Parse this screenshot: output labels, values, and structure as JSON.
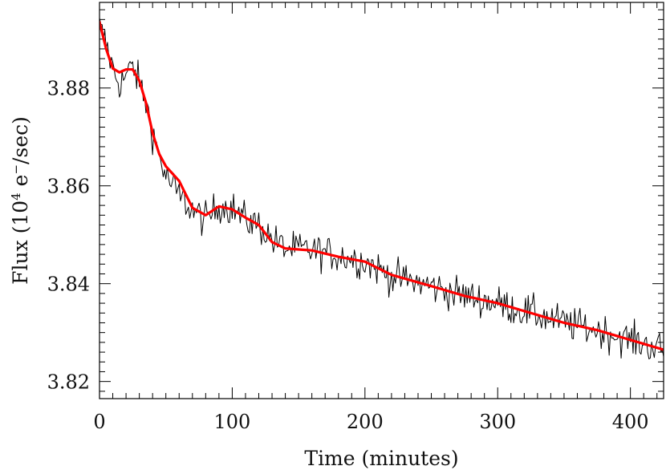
{
  "chart_data": {
    "type": "line",
    "title": "",
    "xlabel": "Time (minutes)",
    "ylabel": {
      "prefix": "Flux (10",
      "exponent": "4",
      "unit": " e",
      "unit_superscript": "−",
      "suffix": "/sec)"
    },
    "xlim": [
      0,
      425
    ],
    "ylim": [
      3.8165,
      3.8975
    ],
    "xticks": [
      0,
      100,
      200,
      300,
      400
    ],
    "xtick_labels": [
      "0",
      "100",
      "200",
      "300",
      "400"
    ],
    "xminor_step": 10,
    "yticks": [
      3.82,
      3.84,
      3.86,
      3.88
    ],
    "ytick_labels": [
      "3.82",
      "3.84",
      "3.86",
      "3.88"
    ],
    "yminor_step": 0.002,
    "grid": false,
    "legend": "none",
    "colors": {
      "data": "#000000",
      "fit": "#ff0000",
      "axes": "#000000"
    },
    "series": [
      {
        "role": "measured",
        "style": "thin-black-line",
        "sample_step_minutes": 1,
        "noise_amplitude": 0.0035,
        "values_follow": "smoothed trend plus per-sample scatter",
        "x": [
          0,
          5,
          10,
          15,
          20,
          25,
          30,
          35,
          40,
          45,
          50,
          60,
          70,
          80,
          90,
          100,
          110,
          120,
          130,
          140,
          160,
          180,
          200,
          220,
          250,
          275,
          300,
          325,
          350,
          375,
          400,
          425
        ],
        "y": [
          3.8925,
          3.889,
          3.884,
          3.881,
          3.8825,
          3.8845,
          3.881,
          3.877,
          3.871,
          3.866,
          3.862,
          3.858,
          3.855,
          3.853,
          3.856,
          3.8555,
          3.853,
          3.852,
          3.849,
          3.8472,
          3.8468,
          3.8458,
          3.8445,
          3.8415,
          3.8395,
          3.8375,
          3.836,
          3.834,
          3.832,
          3.8305,
          3.8285,
          3.8265
        ]
      },
      {
        "role": "fit",
        "style": "thick-red-line",
        "x": [
          0,
          5,
          10,
          15,
          20,
          25,
          30,
          35,
          40,
          45,
          50,
          60,
          70,
          80,
          90,
          100,
          110,
          120,
          130,
          140,
          160,
          180,
          200,
          220,
          250,
          275,
          300,
          325,
          350,
          375,
          400,
          425
        ],
        "y": [
          3.8935,
          3.888,
          3.884,
          3.8832,
          3.8838,
          3.8838,
          3.8815,
          3.877,
          3.8708,
          3.8665,
          3.864,
          3.861,
          3.8555,
          3.854,
          3.8558,
          3.8552,
          3.8535,
          3.852,
          3.8485,
          3.8472,
          3.8468,
          3.8455,
          3.8445,
          3.8418,
          3.8395,
          3.8375,
          3.836,
          3.834,
          3.832,
          3.8305,
          3.8285,
          3.8265
        ]
      }
    ]
  }
}
